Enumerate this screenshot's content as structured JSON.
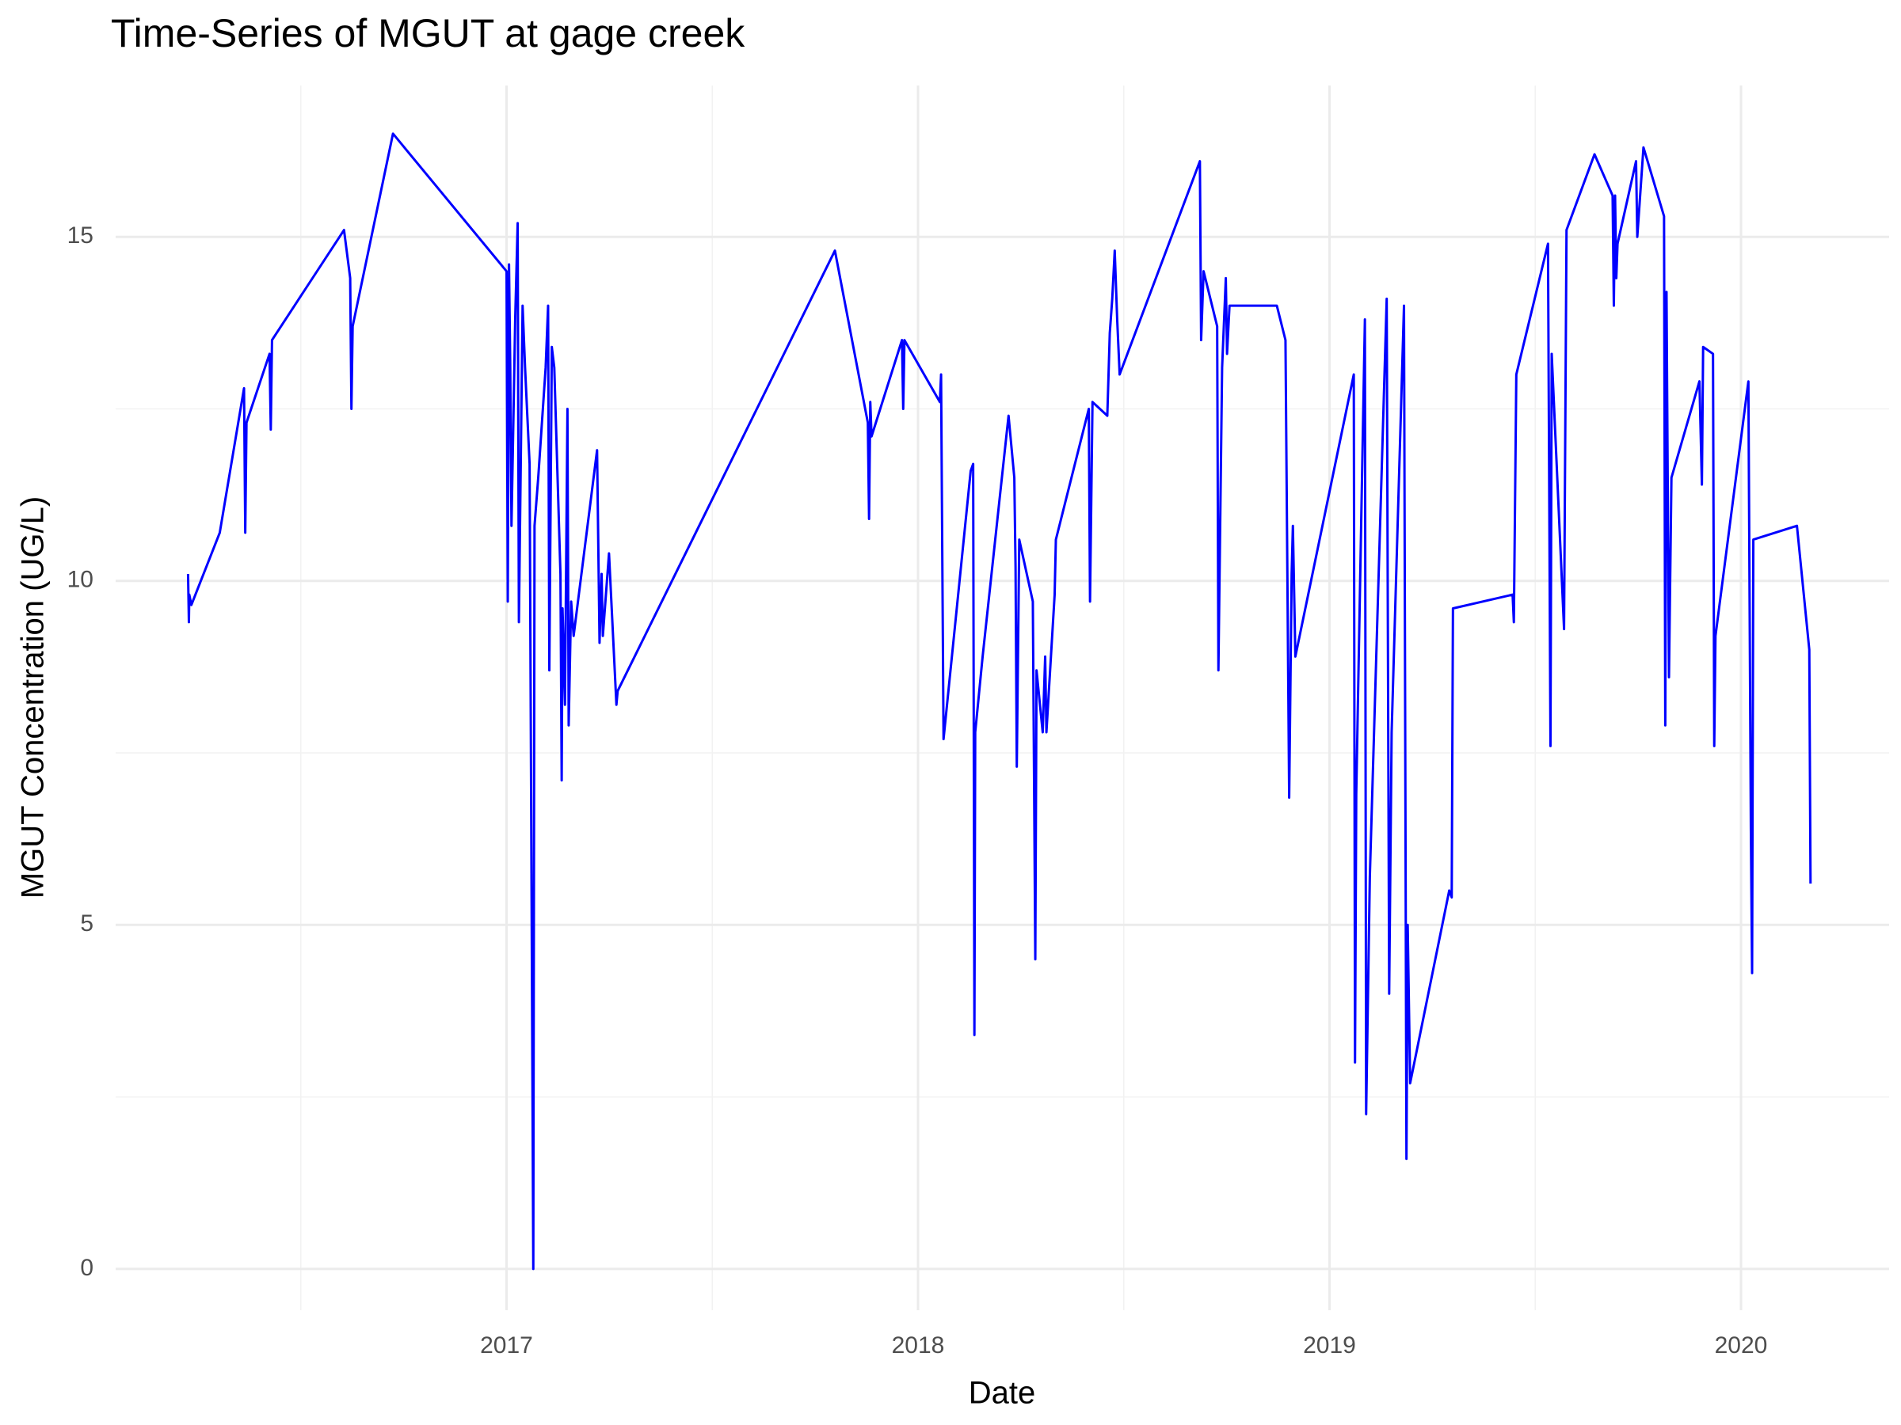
{
  "chart_data": {
    "type": "line",
    "title": "Time-Series of MGUT at gage creek",
    "x_label": "Date",
    "y_label": "MGUT Concentration (UG/L)",
    "xlim": [
      2016.05,
      2020.36
    ],
    "xticks": [
      2017,
      2018,
      2019,
      2020
    ],
    "xminorticks": [
      2016.5,
      2017.5,
      2018.5,
      2019.5
    ],
    "ylim": [
      -0.6,
      17.2
    ],
    "yticks": [
      0,
      5,
      10,
      15
    ],
    "yminorticks": [
      2.5,
      7.5,
      12.5
    ],
    "grid": true,
    "series": [
      {
        "name": "MGUT",
        "color": "#0000ff",
        "x": [
          2016.226,
          2016.228,
          2016.229,
          2016.234,
          2016.303,
          2016.362,
          2016.365,
          2016.368,
          2016.424,
          2016.427,
          2016.43,
          2016.605,
          2016.62,
          2016.623,
          2016.626,
          2016.724,
          2017.0,
          2017.003,
          2017.006,
          2017.009,
          2017.012,
          2017.021,
          2017.027,
          2017.03,
          2017.039,
          2017.045,
          2017.056,
          2017.065,
          2017.068,
          2017.077,
          2017.095,
          2017.101,
          2017.104,
          2017.11,
          2017.116,
          2017.131,
          2017.134,
          2017.136,
          2017.142,
          2017.148,
          2017.151,
          2017.157,
          2017.163,
          2017.22,
          2017.226,
          2017.231,
          2017.234,
          2017.249,
          2017.267,
          2017.27,
          2017.798,
          2017.878,
          2017.881,
          2017.884,
          2017.887,
          2017.961,
          2017.964,
          2017.967,
          2018.053,
          2018.056,
          2018.062,
          2018.128,
          2018.134,
          2018.137,
          2018.139,
          2018.157,
          2018.22,
          2018.234,
          2018.237,
          2018.24,
          2018.246,
          2018.279,
          2018.285,
          2018.288,
          2018.303,
          2018.309,
          2018.312,
          2018.332,
          2018.335,
          2018.415,
          2018.418,
          2018.424,
          2018.46,
          2018.466,
          2018.472,
          2018.478,
          2018.484,
          2018.49,
          2018.685,
          2018.688,
          2018.694,
          2018.727,
          2018.73,
          2018.739,
          2018.748,
          2018.751,
          2018.757,
          2018.872,
          2018.893,
          2018.902,
          2018.908,
          2018.911,
          2018.917,
          2019.059,
          2019.062,
          2019.065,
          2019.086,
          2019.089,
          2019.098,
          2019.139,
          2019.145,
          2019.151,
          2019.181,
          2019.187,
          2019.19,
          2019.196,
          2019.291,
          2019.297,
          2019.3,
          2019.445,
          2019.448,
          2019.454,
          2019.531,
          2019.537,
          2019.54,
          2019.57,
          2019.576,
          2019.644,
          2019.688,
          2019.691,
          2019.694,
          2019.697,
          2019.7,
          2019.745,
          2019.748,
          2019.763,
          2019.813,
          2019.816,
          2019.819,
          2019.825,
          2019.831,
          2019.899,
          2019.905,
          2019.908,
          2019.932,
          2019.935,
          2019.938,
          2020.018,
          2020.024,
          2020.027,
          2020.03,
          2020.136,
          2020.166,
          2020.169
        ],
        "values": [
          10.1,
          9.4,
          9.8,
          9.65,
          10.7,
          12.8,
          10.7,
          12.3,
          13.3,
          12.2,
          13.5,
          15.1,
          14.4,
          12.5,
          13.7,
          16.5,
          14.5,
          9.7,
          14.6,
          13.1,
          10.8,
          13.8,
          15.2,
          9.4,
          14.0,
          13.1,
          11.7,
          0,
          10.8,
          11.5,
          13.1,
          14.0,
          8.7,
          13.4,
          13.1,
          10.1,
          7.1,
          9.6,
          8.2,
          12.5,
          7.9,
          9.7,
          9.2,
          11.9,
          9.1,
          10.1,
          9.2,
          10.4,
          8.2,
          8.4,
          14.8,
          12.3,
          10.9,
          12.6,
          12.1,
          13.5,
          12.5,
          13.5,
          12.6,
          13.0,
          7.7,
          11.6,
          11.7,
          3.4,
          7.8,
          8.9,
          12.4,
          11.5,
          10.2,
          7.3,
          10.6,
          9.7,
          4.5,
          8.7,
          7.8,
          8.9,
          7.8,
          9.8,
          10.6,
          12.5,
          9.7,
          12.6,
          12.4,
          13.6,
          14.1,
          14.8,
          13.8,
          13.0,
          16.1,
          13.5,
          14.5,
          13.7,
          8.7,
          13.1,
          14.4,
          13.3,
          14.0,
          14.0,
          13.5,
          6.85,
          10.1,
          10.8,
          8.9,
          13.0,
          3.0,
          6.9,
          13.8,
          2.25,
          5.7,
          14.1,
          4.0,
          7.8,
          14.0,
          1.6,
          5.0,
          2.7,
          5.5,
          5.4,
          9.6,
          9.8,
          9.4,
          13.0,
          14.9,
          7.6,
          13.3,
          9.3,
          15.1,
          16.2,
          15.6,
          14.0,
          15.6,
          14.4,
          14.9,
          16.1,
          15.0,
          16.3,
          15.3,
          7.9,
          14.2,
          8.6,
          11.5,
          12.9,
          11.4,
          13.4,
          13.3,
          7.6,
          9.2,
          12.9,
          6.4,
          4.3,
          10.6,
          10.8,
          9.0,
          5.6
        ]
      }
    ]
  }
}
